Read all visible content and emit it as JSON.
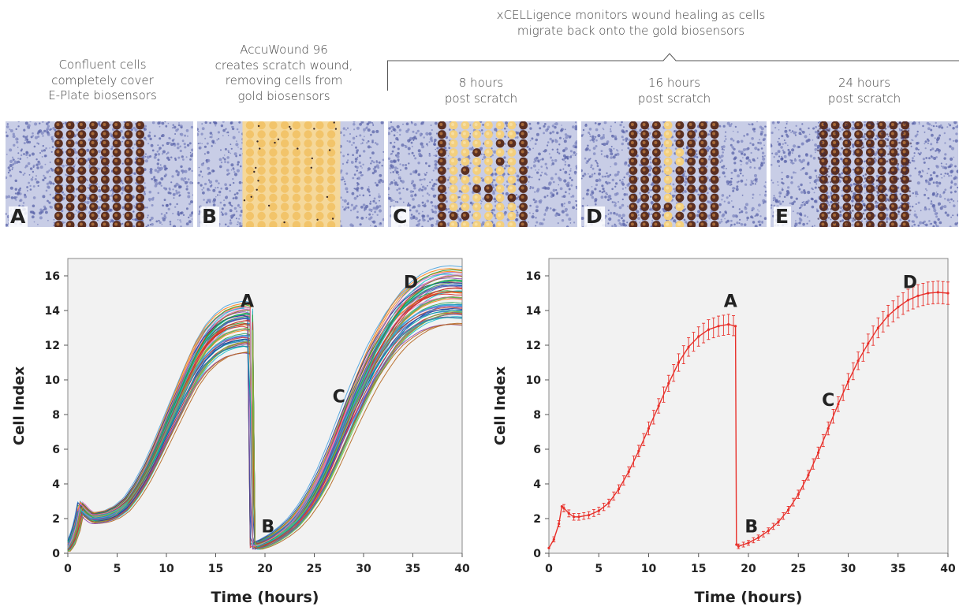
{
  "header": {
    "monitor_caption": [
      "xCELLigence monitors wound healing as cells",
      "migrate back onto the gold biosensors"
    ]
  },
  "panels": [
    {
      "letter": "A",
      "caption": [
        "Confluent cells",
        "completely cover",
        "E-Plate biosensors"
      ],
      "state": "confluent"
    },
    {
      "letter": "B",
      "caption": [
        "AccuWound 96",
        "creates scratch wound,",
        "removing cells from",
        "gold biosensors"
      ],
      "state": "scratch"
    },
    {
      "letter": "C",
      "caption": [
        "8 hours",
        "post scratch"
      ],
      "state": "8h"
    },
    {
      "letter": "D",
      "caption": [
        "16 hours",
        "post scratch"
      ],
      "state": "16h"
    },
    {
      "letter": "E",
      "caption": [
        "24 hours",
        "post scratch"
      ],
      "state": "24h"
    }
  ],
  "chart_data": [
    {
      "type": "line",
      "xlabel": "Time (hours)",
      "ylabel": "Cell Index",
      "xlim": [
        0,
        40
      ],
      "ylim": [
        0,
        17
      ],
      "xticks": [
        0,
        5,
        10,
        15,
        20,
        25,
        30,
        35,
        40
      ],
      "yticks": [
        0,
        2,
        4,
        6,
        8,
        10,
        12,
        14,
        16
      ],
      "grid": false,
      "mean_curve": {
        "x": [
          0,
          0.5,
          1,
          1.3,
          1.5,
          2,
          2.5,
          3,
          4,
          5,
          6,
          7,
          8,
          9,
          10,
          11,
          12,
          13,
          14,
          15,
          16,
          17,
          18,
          18.7,
          18.8,
          19,
          20,
          21,
          22,
          23,
          24,
          25,
          26,
          27,
          28,
          29,
          30,
          31,
          32,
          33,
          34,
          35,
          36,
          37,
          38,
          39,
          40
        ],
        "y": [
          0.3,
          0.8,
          1.7,
          2.7,
          2.6,
          2.3,
          2.1,
          2.1,
          2.2,
          2.45,
          2.9,
          3.7,
          4.7,
          5.9,
          7.2,
          8.5,
          9.8,
          11.0,
          11.9,
          12.5,
          12.9,
          13.1,
          13.2,
          13.1,
          0.5,
          0.4,
          0.6,
          0.9,
          1.3,
          1.8,
          2.5,
          3.4,
          4.5,
          5.8,
          7.2,
          8.6,
          9.9,
          11.1,
          12.1,
          13.0,
          13.7,
          14.2,
          14.6,
          14.85,
          15.0,
          15.05,
          15.0
        ]
      },
      "series_count": 96,
      "annotations": [
        {
          "text": "A",
          "x": 18.2,
          "y": 14.2
        },
        {
          "text": "B",
          "x": 20.3,
          "y": 1.2
        },
        {
          "text": "C",
          "x": 27.5,
          "y": 8.7
        },
        {
          "text": "D",
          "x": 34.8,
          "y": 15.3
        }
      ]
    },
    {
      "type": "line",
      "xlabel": "Time (hours)",
      "ylabel": "Cell Index",
      "xlim": [
        0,
        40
      ],
      "ylim": [
        0,
        17
      ],
      "xticks": [
        0,
        5,
        10,
        15,
        20,
        25,
        30,
        35,
        40
      ],
      "yticks": [
        0,
        2,
        4,
        6,
        8,
        10,
        12,
        14,
        16
      ],
      "grid": false,
      "color": "#e8302a",
      "mean_curve": {
        "x": [
          0,
          0.5,
          1,
          1.3,
          1.5,
          2,
          2.5,
          3,
          4,
          5,
          6,
          7,
          8,
          9,
          10,
          11,
          12,
          13,
          14,
          15,
          16,
          17,
          18,
          18.7,
          18.8,
          19,
          20,
          21,
          22,
          23,
          24,
          25,
          26,
          27,
          28,
          29,
          30,
          31,
          32,
          33,
          34,
          35,
          36,
          37,
          38,
          39,
          40
        ],
        "y": [
          0.3,
          0.8,
          1.7,
          2.7,
          2.6,
          2.3,
          2.1,
          2.1,
          2.2,
          2.45,
          2.9,
          3.7,
          4.7,
          5.9,
          7.2,
          8.5,
          9.8,
          11.0,
          11.9,
          12.5,
          12.9,
          13.1,
          13.2,
          13.1,
          0.5,
          0.4,
          0.6,
          0.9,
          1.3,
          1.8,
          2.5,
          3.4,
          4.5,
          5.8,
          7.2,
          8.6,
          9.9,
          11.1,
          12.1,
          13.0,
          13.7,
          14.2,
          14.6,
          14.85,
          15.0,
          15.05,
          15.0
        ]
      },
      "error_bars": "standard deviation shown as vertical bars",
      "annotations": [
        {
          "text": "A",
          "x": 18.2,
          "y": 14.2
        },
        {
          "text": "B",
          "x": 20.3,
          "y": 1.2
        },
        {
          "text": "C",
          "x": 28.0,
          "y": 8.5
        },
        {
          "text": "D",
          "x": 36.2,
          "y": 15.3
        }
      ]
    }
  ]
}
